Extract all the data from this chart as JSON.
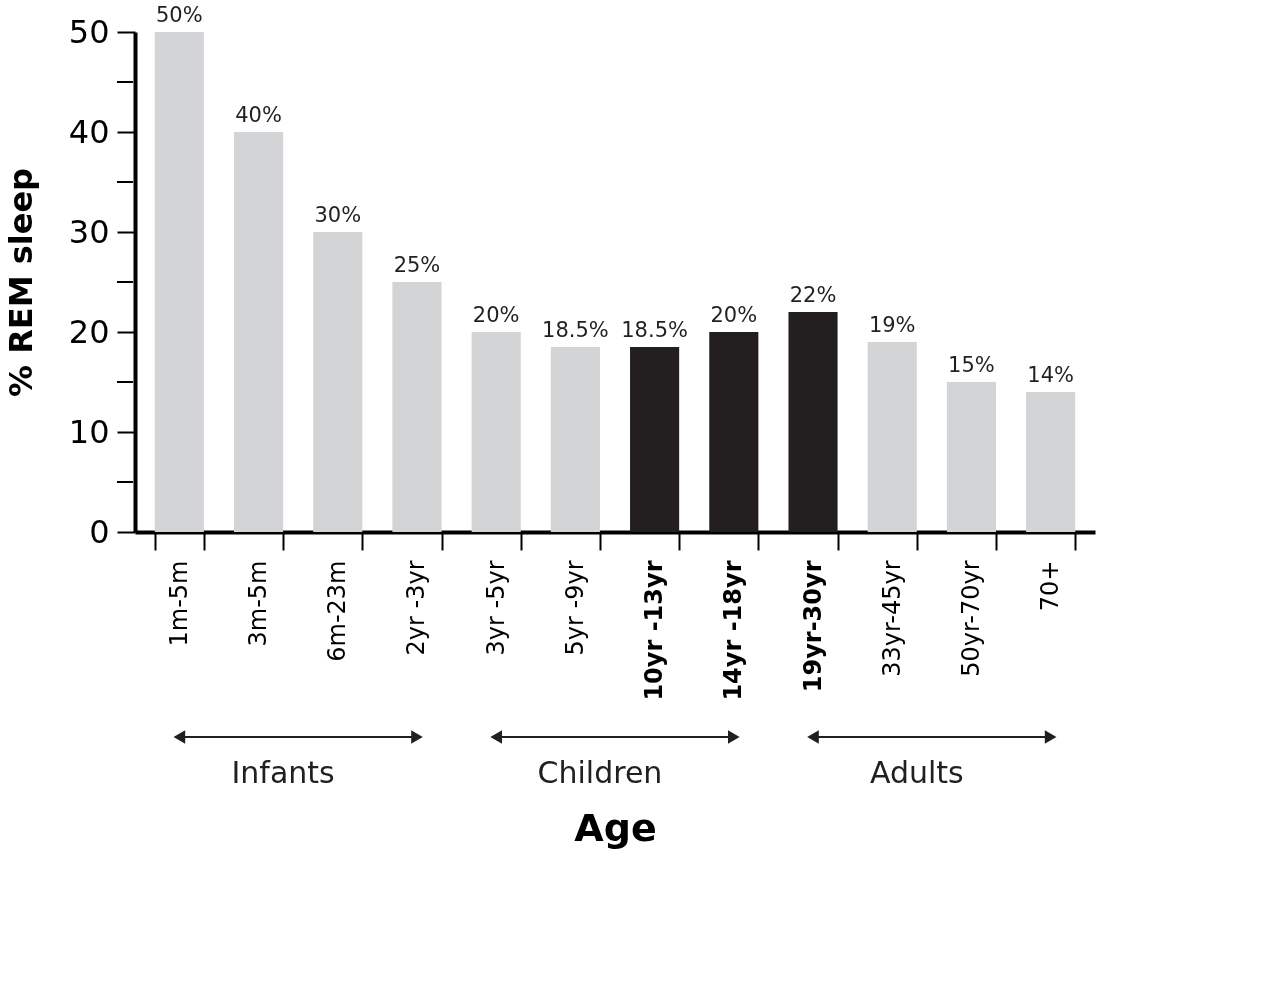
{
  "chart_data": {
    "type": "bar",
    "xlabel": "Age",
    "ylabel": "% REM sleep",
    "categories": [
      "1m-5m",
      "3m-5m",
      "6m-23m",
      "2yr -3yr",
      "3yr -5yr",
      "5yr -9yr",
      "10yr -13yr",
      "14yr -18yr",
      "19yr-30yr",
      "33yr-45yr",
      "50yr-70yr",
      "70+"
    ],
    "values": [
      50,
      40,
      30,
      25,
      20,
      18.5,
      18.5,
      20,
      22,
      19,
      15,
      14
    ],
    "value_labels": [
      "50%",
      "40%",
      "30%",
      "25%",
      "20%",
      "18.5%",
      "18.5%",
      "20%",
      "22%",
      "19%",
      "15%",
      "14%"
    ],
    "colors": [
      "#d3d4d6",
      "#d3d4d6",
      "#d3d4d6",
      "#d3d4d6",
      "#d3d4d6",
      "#d3d4d6",
      "#231f20",
      "#231f20",
      "#231f20",
      "#d3d4d6",
      "#d3d4d6",
      "#d3d4d6"
    ],
    "ylim": [
      0,
      50
    ],
    "yticks": [
      0,
      {
        "value": 5,
        "label": null
      },
      10,
      {
        "value": 15,
        "label": null
      },
      20,
      {
        "value": 25,
        "label": null
      },
      30,
      {
        "value": 35,
        "label": null
      },
      40,
      {
        "value": 45,
        "label": null
      },
      50
    ],
    "annotations": [
      "Infants",
      "Children",
      "Adults"
    ],
    "legend": false
  }
}
